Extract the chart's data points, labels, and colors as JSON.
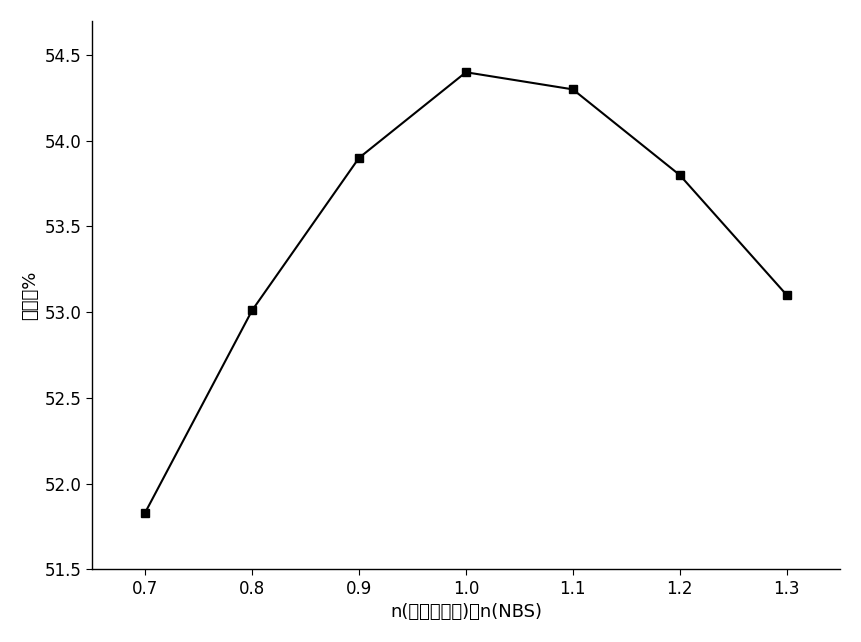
{
  "x": [
    0.7,
    0.8,
    0.9,
    1.0,
    1.1,
    1.2,
    1.3
  ],
  "y": [
    51.83,
    53.01,
    53.9,
    54.4,
    54.3,
    53.8,
    53.1
  ],
  "xlabel": "n(四甲基吠啊)：n(NBS)",
  "ylabel": "产率／%",
  "xlim": [
    0.65,
    1.35
  ],
  "ylim": [
    51.5,
    54.7
  ],
  "xticks": [
    0.7,
    0.8,
    0.9,
    1.0,
    1.1,
    1.2,
    1.3
  ],
  "yticks": [
    51.5,
    52.0,
    52.5,
    53.0,
    53.5,
    54.0,
    54.5
  ],
  "line_color": "#000000",
  "marker": "s",
  "marker_size": 6,
  "marker_color": "#000000",
  "line_width": 1.5,
  "background_color": "#ffffff",
  "xlabel_fontsize": 13,
  "ylabel_fontsize": 13,
  "tick_fontsize": 12
}
